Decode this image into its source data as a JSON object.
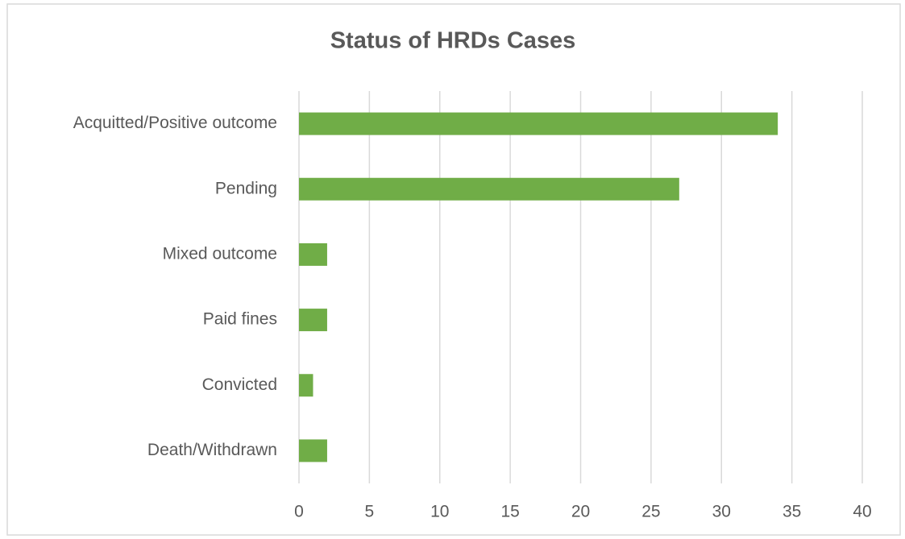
{
  "chart_data": {
    "type": "hbar",
    "title": "Status of HRDs Cases",
    "categories": [
      "Acquitted/Positive outcome",
      "Pending",
      "Mixed outcome",
      "Paid fines",
      "Convicted",
      "Death/Withdrawn"
    ],
    "values": [
      34,
      27,
      2,
      2,
      1,
      2
    ],
    "color": "#70ad47",
    "xlim": [
      0,
      40
    ],
    "xticks": [
      0,
      5,
      10,
      15,
      20,
      25,
      30,
      35,
      40
    ],
    "grid": true
  }
}
